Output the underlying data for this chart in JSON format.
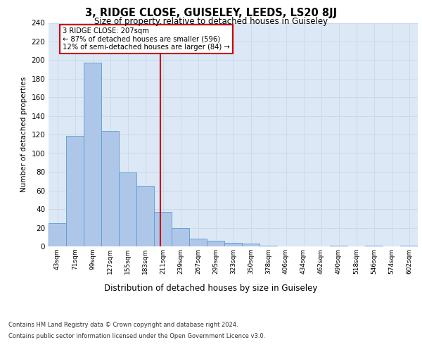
{
  "title": "3, RIDGE CLOSE, GUISELEY, LEEDS, LS20 8JJ",
  "subtitle": "Size of property relative to detached houses in Guiseley",
  "xlabel": "Distribution of detached houses by size in Guiseley",
  "ylabel": "Number of detached properties",
  "categories": [
    "43sqm",
    "71sqm",
    "99sqm",
    "127sqm",
    "155sqm",
    "183sqm",
    "211sqm",
    "239sqm",
    "267sqm",
    "295sqm",
    "323sqm",
    "350sqm",
    "378sqm",
    "406sqm",
    "434sqm",
    "462sqm",
    "490sqm",
    "518sqm",
    "546sqm",
    "574sqm",
    "602sqm"
  ],
  "values": [
    25,
    119,
    197,
    124,
    79,
    65,
    37,
    20,
    8,
    6,
    4,
    3,
    1,
    0,
    0,
    0,
    1,
    0,
    1,
    0,
    1
  ],
  "bar_color": "#aec7e8",
  "bar_edge_color": "#5b9bd5",
  "grid_color": "#c8d8e8",
  "background_color": "#dce8f5",
  "vline_color": "#cc0000",
  "annotation_text": "3 RIDGE CLOSE: 207sqm\n← 87% of detached houses are smaller (596)\n12% of semi-detached houses are larger (84) →",
  "annotation_box_color": "#ffffff",
  "annotation_box_edge": "#cc0000",
  "ylim": [
    0,
    240
  ],
  "yticks": [
    0,
    20,
    40,
    60,
    80,
    100,
    120,
    140,
    160,
    180,
    200,
    220,
    240
  ],
  "footer_line1": "Contains HM Land Registry data © Crown copyright and database right 2024.",
  "footer_line2": "Contains public sector information licensed under the Open Government Licence v3.0."
}
